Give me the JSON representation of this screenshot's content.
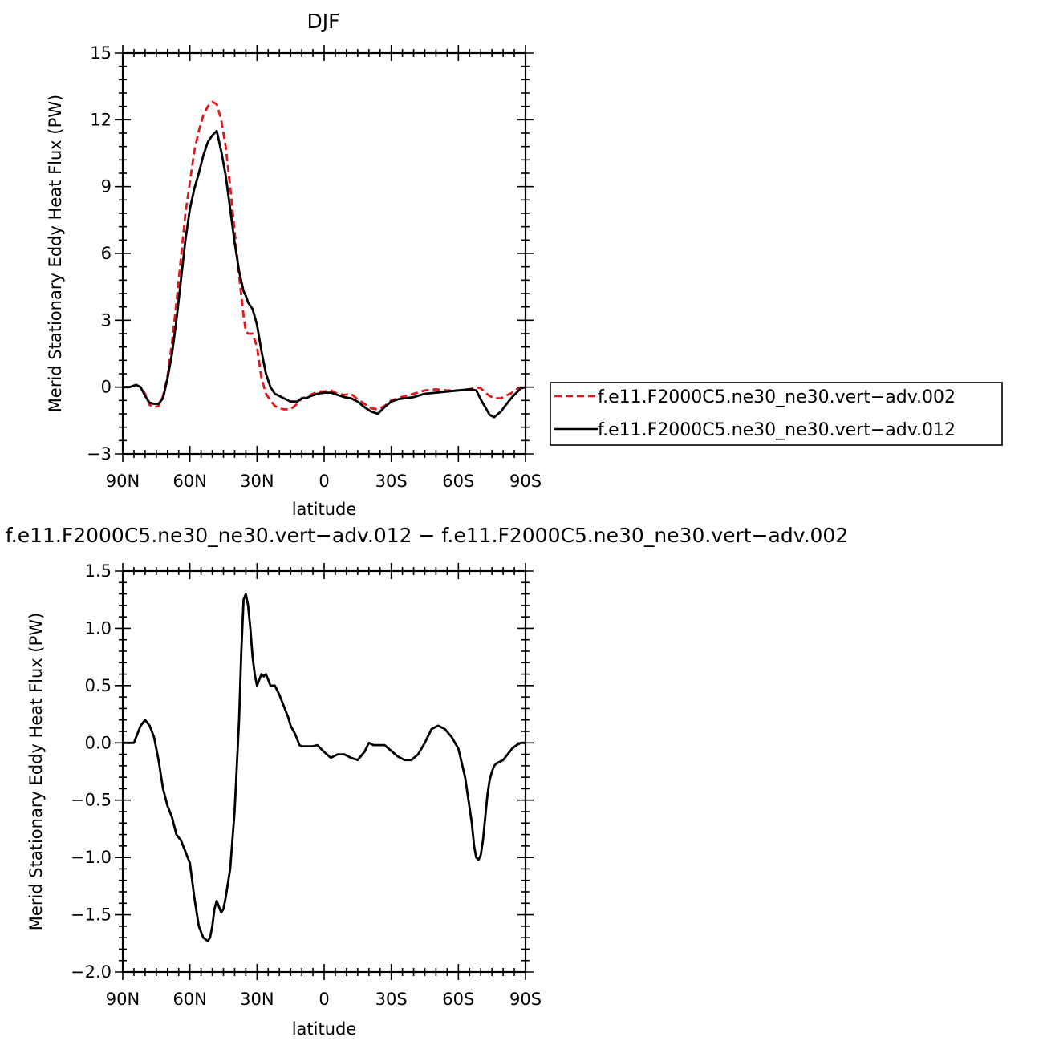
{
  "colors": {
    "series_a": "#e4161b",
    "series_b": "#000000",
    "axis": "#000000"
  },
  "chart_data": [
    {
      "type": "line",
      "title": "DJF",
      "xlabel": "latitude",
      "ylabel": "Merid Stationary Eddy Heat Flux (PW)",
      "xlim": [
        90,
        -90
      ],
      "ylim": [
        -3,
        15
      ],
      "xticks": [
        90,
        60,
        30,
        0,
        -30,
        -60,
        -90
      ],
      "xtick_labels": [
        "90N",
        "60N",
        "30N",
        "0",
        "30S",
        "60S",
        "90S"
      ],
      "yticks": [
        -3,
        0,
        3,
        6,
        9,
        12,
        15
      ],
      "ytick_labels": [
        "−3",
        "0",
        "3",
        "6",
        "9",
        "12",
        "15"
      ],
      "legend_position": "right",
      "series": [
        {
          "name": "f.e11.F2000C5.ne30_ne30.vert−adv.002",
          "style": "dashed",
          "x": [
            90,
            87,
            84,
            82,
            80,
            78,
            76,
            74,
            72,
            70,
            68,
            66,
            64,
            62,
            60,
            58,
            56,
            54,
            52,
            50,
            48,
            46,
            44,
            42,
            40,
            38,
            36,
            35,
            34,
            32,
            30,
            28,
            26,
            24,
            22,
            20,
            18,
            15,
            12,
            10,
            8,
            6,
            3,
            0,
            -3,
            -6,
            -9,
            -12,
            -15,
            -18,
            -21,
            -24,
            -27,
            -30,
            -33,
            -36,
            -40,
            -45,
            -50,
            -55,
            -60,
            -65,
            -68,
            -70,
            -72,
            -74,
            -76,
            -79,
            -82,
            -84,
            -86,
            -88,
            -90
          ],
          "y": [
            0,
            0,
            0.1,
            0,
            -0.3,
            -0.8,
            -0.9,
            -0.85,
            -0.4,
            0.5,
            2.0,
            3.8,
            5.8,
            7.8,
            9.2,
            10.6,
            11.5,
            12.2,
            12.6,
            12.8,
            12.7,
            12.0,
            10.8,
            9.0,
            7.0,
            5.0,
            3.2,
            2.5,
            2.4,
            2.4,
            1.8,
            0.4,
            -0.3,
            -0.6,
            -0.85,
            -0.95,
            -1.0,
            -1.0,
            -0.75,
            -0.5,
            -0.45,
            -0.35,
            -0.2,
            -0.2,
            -0.15,
            -0.3,
            -0.35,
            -0.3,
            -0.55,
            -0.75,
            -0.95,
            -1.0,
            -0.85,
            -0.6,
            -0.5,
            -0.4,
            -0.3,
            -0.15,
            -0.1,
            -0.15,
            -0.15,
            -0.1,
            0,
            -0.05,
            -0.25,
            -0.4,
            -0.5,
            -0.5,
            -0.35,
            -0.25,
            -0.1,
            -0.05,
            0
          ]
        },
        {
          "name": "f.e11.F2000C5.ne30_ne30.vert−adv.012",
          "style": "solid",
          "x": [
            90,
            87,
            84,
            82,
            80,
            78,
            76,
            74,
            72,
            70,
            68,
            66,
            64,
            62,
            60,
            58,
            56,
            54,
            52,
            50,
            48,
            46,
            44,
            42,
            40,
            38,
            36,
            35,
            34,
            32,
            30,
            28,
            26,
            24,
            22,
            20,
            18,
            15,
            12,
            10,
            8,
            6,
            3,
            0,
            -3,
            -6,
            -9,
            -12,
            -15,
            -18,
            -21,
            -24,
            -27,
            -30,
            -33,
            -36,
            -40,
            -45,
            -50,
            -55,
            -60,
            -65,
            -68,
            -70,
            -72,
            -74,
            -76,
            -79,
            -82,
            -84,
            -86,
            -88,
            -90
          ],
          "y": [
            0,
            0,
            0.1,
            0,
            -0.4,
            -0.7,
            -0.75,
            -0.75,
            -0.5,
            0.4,
            1.5,
            3.0,
            4.8,
            6.6,
            8.0,
            8.9,
            9.6,
            10.4,
            11.0,
            11.3,
            11.5,
            10.6,
            9.5,
            8.0,
            6.5,
            5.2,
            4.3,
            4.1,
            3.8,
            3.5,
            2.8,
            1.6,
            0.6,
            0,
            -0.3,
            -0.4,
            -0.5,
            -0.65,
            -0.65,
            -0.5,
            -0.5,
            -0.4,
            -0.3,
            -0.25,
            -0.25,
            -0.35,
            -0.45,
            -0.5,
            -0.65,
            -0.9,
            -1.1,
            -1.2,
            -0.9,
            -0.65,
            -0.55,
            -0.5,
            -0.45,
            -0.3,
            -0.25,
            -0.2,
            -0.15,
            -0.1,
            -0.15,
            -0.55,
            -0.9,
            -1.25,
            -1.35,
            -1.1,
            -0.7,
            -0.45,
            -0.25,
            -0.05,
            0
          ]
        }
      ]
    },
    {
      "type": "line",
      "title": "f.e11.F2000C5.ne30_ne30.vert−adv.012 − f.e11.F2000C5.ne30_ne30.vert−adv.002",
      "xlabel": "latitude",
      "ylabel": "Merid Stationary Eddy Heat Flux (PW)",
      "xlim": [
        90,
        -90
      ],
      "ylim": [
        -2.0,
        1.5
      ],
      "xticks": [
        90,
        60,
        30,
        0,
        -30,
        -60,
        -90
      ],
      "xtick_labels": [
        "90N",
        "60N",
        "30N",
        "0",
        "30S",
        "60S",
        "90S"
      ],
      "yticks": [
        -2.0,
        -1.5,
        -1.0,
        -0.5,
        0.0,
        0.5,
        1.0,
        1.5
      ],
      "ytick_labels": [
        "−2.0",
        "−1.5",
        "−1.0",
        "−0.5",
        "0.0",
        "0.5",
        "1.0",
        "1.5"
      ],
      "series": [
        {
          "style": "solid",
          "x": [
            90,
            85,
            84,
            82,
            80,
            78,
            76,
            74,
            72,
            70,
            68,
            66,
            64,
            62,
            60,
            58,
            56,
            54,
            52,
            51,
            50,
            49,
            48,
            46,
            45,
            44,
            42,
            40,
            38,
            37,
            36,
            35,
            34,
            33,
            32,
            31,
            30,
            29,
            28,
            27,
            26,
            25,
            24,
            22,
            20,
            18,
            16,
            15,
            13,
            11,
            10,
            8,
            6,
            5,
            3,
            0,
            -3,
            -6,
            -9,
            -12,
            -15,
            -18,
            -20,
            -22,
            -25,
            -27,
            -30,
            -33,
            -36,
            -39,
            -42,
            -45,
            -48,
            -51,
            -54,
            -57,
            -60,
            -63,
            -66,
            -67,
            -68,
            -69,
            -70,
            -71,
            -72,
            -73,
            -74,
            -75,
            -76,
            -77,
            -78,
            -79,
            -80,
            -82,
            -84,
            -86,
            -88,
            -90
          ],
          "y": [
            0,
            0,
            0.05,
            0.15,
            0.2,
            0.15,
            0.05,
            -0.15,
            -0.4,
            -0.55,
            -0.65,
            -0.8,
            -0.85,
            -0.95,
            -1.05,
            -1.35,
            -1.6,
            -1.7,
            -1.73,
            -1.7,
            -1.6,
            -1.45,
            -1.38,
            -1.48,
            -1.45,
            -1.35,
            -1.1,
            -0.6,
            0.2,
            0.8,
            1.25,
            1.3,
            1.2,
            1.0,
            0.75,
            0.6,
            0.5,
            0.55,
            0.6,
            0.58,
            0.6,
            0.55,
            0.5,
            0.5,
            0.42,
            0.32,
            0.22,
            0.15,
            0.08,
            -0.02,
            -0.03,
            -0.03,
            -0.03,
            -0.03,
            -0.02,
            -0.08,
            -0.13,
            -0.1,
            -0.1,
            -0.13,
            -0.15,
            -0.08,
            0,
            -0.02,
            -0.02,
            -0.02,
            -0.07,
            -0.12,
            -0.15,
            -0.15,
            -0.1,
            0.0,
            0.12,
            0.15,
            0.12,
            0.05,
            -0.05,
            -0.3,
            -0.7,
            -0.9,
            -1.0,
            -1.02,
            -0.98,
            -0.85,
            -0.65,
            -0.45,
            -0.32,
            -0.25,
            -0.2,
            -0.18,
            -0.17,
            -0.16,
            -0.15,
            -0.1,
            -0.05,
            -0.02,
            0,
            0
          ]
        }
      ]
    }
  ]
}
